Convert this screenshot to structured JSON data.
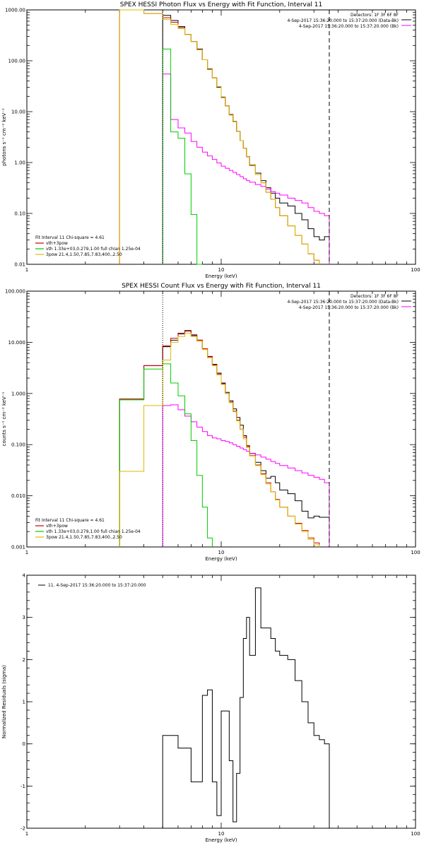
{
  "chart_data": [
    {
      "type": "line",
      "title": "SPEX HESSI Photon Flux vs Energy with Fit Function, Interval 11",
      "xlabel": "Energy (keV)",
      "ylabel": "photons s⁻¹ cm⁻² keV⁻¹",
      "xscale": "log",
      "yscale": "log",
      "xlim": [
        1,
        100
      ],
      "ylim": [
        0.01,
        1000
      ],
      "x_ticks": [
        {
          "v": 1,
          "label": "1"
        },
        {
          "v": 10,
          "label": "10"
        },
        {
          "v": 100,
          "label": "100"
        }
      ],
      "y_ticks": [
        {
          "v": 0.01,
          "label": "0.01"
        },
        {
          "v": 0.1,
          "label": "0.10"
        },
        {
          "v": 1,
          "label": "1.00"
        },
        {
          "v": 10,
          "label": "10.00"
        },
        {
          "v": 100,
          "label": "100.00"
        },
        {
          "v": 1000,
          "label": "1000.00"
        }
      ],
      "vlines": [
        {
          "x": 5.0,
          "style": "dotted",
          "color": "#000000"
        },
        {
          "x": 36.0,
          "style": "dashed",
          "color": "#000000"
        }
      ],
      "info_lines": [
        "Detectors: 1F 3F 6F 8F",
        "4-Sep-2017 15:36:20.000 to 15:37:20.000 (Data-Bk)",
        "4-Sep-2017 15:36:20.000 to 15:37:20.000 (Bk)"
      ],
      "info_colors": [
        "#000000",
        "#ff00ff"
      ],
      "fit_text": "Fit Interval 11   Chi-square = 4.61",
      "legend": [
        {
          "label": "vth+3pow",
          "color": "#cc0000"
        },
        {
          "label": "vth 1.33e+03,0.279,1.00  full chian 1.25e-04",
          "color": "#00cc00"
        },
        {
          "label": "3pow 21.4,1.50,7.85,7.83,400.,2.50",
          "color": "#ddbb00"
        }
      ],
      "edges": [
        3,
        4,
        5,
        5.5,
        6,
        6.5,
        7,
        7.5,
        8,
        8.5,
        9,
        9.5,
        10,
        10.5,
        11,
        11.5,
        12,
        12.5,
        13,
        13.5,
        14,
        15,
        16,
        17,
        18,
        19,
        20,
        22,
        24,
        26,
        28,
        30,
        32,
        34,
        36
      ],
      "series": [
        {
          "name": "Data-Bk",
          "color": "#000000",
          "values": [
            null,
            null,
            780,
            620,
            470,
            330,
            240,
            170,
            105,
            68,
            46,
            30,
            19,
            13,
            8.8,
            6.4,
            4.1,
            2.7,
            1.9,
            1.3,
            0.88,
            0.62,
            0.44,
            0.32,
            0.25,
            0.2,
            0.16,
            0.14,
            0.1,
            0.075,
            0.05,
            0.035,
            0.03,
            0.035
          ]
        },
        {
          "name": "Bk",
          "color": "#ff00ff",
          "values": [
            null,
            null,
            55,
            7.0,
            4.8,
            3.8,
            2.6,
            2.0,
            1.6,
            1.35,
            1.15,
            0.98,
            0.85,
            0.77,
            0.7,
            0.64,
            0.58,
            0.53,
            0.48,
            0.44,
            0.41,
            0.37,
            0.34,
            0.3,
            0.27,
            0.25,
            0.23,
            0.2,
            0.18,
            0.16,
            0.13,
            0.11,
            0.1,
            0.09
          ]
        },
        {
          "name": "vth+3pow",
          "color": "#cc0000",
          "values": [
            1000,
            850,
            700,
            570,
            450,
            330,
            240,
            165,
            105,
            70,
            46,
            31,
            19.5,
            13,
            8.6,
            6.3,
            4.1,
            2.7,
            1.9,
            1.3,
            0.9,
            0.58,
            0.4,
            0.26,
            0.19,
            0.13,
            0.09,
            0.057,
            0.037,
            0.025,
            0.016,
            0.012,
            null,
            null
          ]
        },
        {
          "name": "vth",
          "color": "#00cc00",
          "values": [
            null,
            null,
            170,
            4.0,
            3.0,
            0.6,
            0.095,
            0.005,
            null,
            null,
            null,
            null,
            null,
            null,
            null,
            null,
            null,
            null,
            null,
            null,
            null,
            null,
            null,
            null,
            null,
            null,
            null,
            null,
            null,
            null,
            null,
            null,
            null,
            null
          ]
        },
        {
          "name": "3pow",
          "color": "#ddbb00",
          "values": [
            1000,
            850,
            650,
            520,
            430,
            330,
            240,
            165,
            105,
            70,
            46,
            31,
            19.5,
            13,
            8.6,
            6.3,
            4.1,
            2.7,
            1.9,
            1.3,
            0.9,
            0.58,
            0.4,
            0.26,
            0.19,
            0.13,
            0.09,
            0.057,
            0.037,
            0.025,
            0.016,
            0.012,
            null,
            null
          ]
        }
      ]
    },
    {
      "type": "line",
      "title": "SPEX HESSI Count Flux vs Energy with Fit Function, Interval 11",
      "xlabel": "Energy (keV)",
      "ylabel": "counts s⁻¹ cm⁻² keV⁻¹",
      "xscale": "log",
      "yscale": "log",
      "xlim": [
        1,
        100
      ],
      "ylim": [
        0.001,
        100
      ],
      "x_ticks": [
        {
          "v": 1,
          "label": "1"
        },
        {
          "v": 10,
          "label": "10"
        },
        {
          "v": 100,
          "label": "100"
        }
      ],
      "y_ticks": [
        {
          "v": 0.001,
          "label": "0.001"
        },
        {
          "v": 0.01,
          "label": "0.010"
        },
        {
          "v": 0.1,
          "label": "0.100"
        },
        {
          "v": 1,
          "label": "1.000"
        },
        {
          "v": 10,
          "label": "10.000"
        },
        {
          "v": 100,
          "label": "100.000"
        }
      ],
      "vlines": [
        {
          "x": 5.0,
          "style": "dotted",
          "color": "#000000"
        },
        {
          "x": 36.0,
          "style": "dashed",
          "color": "#000000"
        }
      ],
      "info_lines": [
        "Detectors: 1F 3F 6F 8F",
        "4-Sep-2017 15:36:20.000 to 15:37:20.000 (Data-Bk)",
        "4-Sep-2017 15:36:20.000 to 15:37:20.000 (Bk)"
      ],
      "info_colors": [
        "#000000",
        "#ff00ff"
      ],
      "fit_text": "Fit Interval 11   Chi-square = 4.61",
      "legend": [
        {
          "label": "vth+3pow",
          "color": "#cc0000"
        },
        {
          "label": "vth 1.33e+03,0.279,1.00  full chian 1.25e-04",
          "color": "#00cc00"
        },
        {
          "label": "3pow 21.4,1.50,7.85,7.83,400.,2.50",
          "color": "#ddbb00"
        }
      ],
      "edges": [
        3,
        4,
        5,
        5.5,
        6,
        6.5,
        7,
        7.5,
        8,
        8.5,
        9,
        9.5,
        10,
        10.5,
        11,
        11.5,
        12,
        12.5,
        13,
        13.5,
        14,
        15,
        16,
        17,
        18,
        19,
        20,
        22,
        24,
        26,
        28,
        30,
        32,
        34,
        36
      ],
      "series": [
        {
          "name": "Data-Bk",
          "color": "#000000",
          "values": [
            0.78,
            3.5,
            8.2,
            11,
            15,
            17,
            14,
            11,
            7.5,
            5.3,
            3.7,
            2.5,
            1.6,
            1.05,
            0.72,
            0.5,
            0.34,
            0.24,
            0.15,
            0.095,
            0.067,
            0.045,
            0.031,
            0.022,
            0.024,
            0.018,
            0.013,
            0.011,
            0.008,
            0.005,
            0.0037,
            0.004,
            0.0038,
            0.0038
          ]
        },
        {
          "name": "Bk",
          "color": "#ff00ff",
          "values": [
            null,
            null,
            0.58,
            0.6,
            0.48,
            0.36,
            0.28,
            0.22,
            0.18,
            0.15,
            0.135,
            0.13,
            0.12,
            0.115,
            0.108,
            0.1,
            0.093,
            0.086,
            0.08,
            0.074,
            0.068,
            0.063,
            0.057,
            0.052,
            0.047,
            0.043,
            0.039,
            0.035,
            0.031,
            0.028,
            0.025,
            0.023,
            0.021,
            0.018
          ]
        },
        {
          "name": "vth+3pow",
          "color": "#cc0000",
          "values": [
            0.78,
            3.5,
            8.5,
            12,
            14.5,
            16.5,
            13.5,
            11,
            7.5,
            5.2,
            3.6,
            2.4,
            1.55,
            1.0,
            0.68,
            0.45,
            0.3,
            0.2,
            0.14,
            0.092,
            0.061,
            0.04,
            0.027,
            0.018,
            0.012,
            0.0085,
            0.006,
            0.004,
            0.0029,
            0.0021,
            0.0015,
            0.0012,
            null,
            null
          ]
        },
        {
          "name": "vth",
          "color": "#00cc00",
          "values": [
            0.75,
            3.0,
            3.8,
            1.6,
            0.9,
            0.4,
            0.12,
            0.025,
            0.006,
            0.0015,
            null,
            null,
            null,
            null,
            null,
            null,
            null,
            null,
            null,
            null,
            null,
            null,
            null,
            null,
            null,
            null,
            null,
            null,
            null,
            null,
            null,
            null,
            null,
            null
          ]
        },
        {
          "name": "3pow",
          "color": "#ddbb00",
          "values": [
            0.03,
            0.58,
            4.5,
            10,
            13,
            15,
            13,
            10.5,
            7.2,
            5.0,
            3.5,
            2.3,
            1.5,
            1.0,
            0.66,
            0.44,
            0.29,
            0.2,
            0.13,
            0.088,
            0.06,
            0.039,
            0.026,
            0.017,
            0.012,
            0.0083,
            0.006,
            0.004,
            0.0028,
            0.002,
            0.0014,
            0.0011,
            null,
            null
          ]
        }
      ]
    },
    {
      "type": "line",
      "title": "",
      "xlabel": "Energy (keV)",
      "ylabel": "Normalized Residuals (sigma)",
      "xscale": "log",
      "yscale": "linear",
      "xlim": [
        1,
        100
      ],
      "ylim": [
        -2,
        4
      ],
      "x_ticks": [
        {
          "v": 1,
          "label": "1"
        },
        {
          "v": 10,
          "label": "10"
        },
        {
          "v": 100,
          "label": "100"
        }
      ],
      "y_ticks": [
        {
          "v": -2,
          "label": "-2"
        },
        {
          "v": -1,
          "label": "-1"
        },
        {
          "v": 0,
          "label": "0"
        },
        {
          "v": 1,
          "label": "1"
        },
        {
          "v": 2,
          "label": "2"
        },
        {
          "v": 3,
          "label": "3"
        },
        {
          "v": 4,
          "label": "4"
        }
      ],
      "vlines": [],
      "info_lines": [],
      "info_colors": [],
      "fit_text": "",
      "legend_top": {
        "label": "11.  4-Sep-2017 15:36:20.000 to 15:37:20.000",
        "color": "#000000"
      },
      "edges": [
        5,
        5.5,
        6,
        6.5,
        7,
        7.5,
        8,
        8.5,
        9,
        9.5,
        10,
        10.5,
        11,
        11.5,
        12,
        12.5,
        13,
        13.5,
        14,
        15,
        16,
        17,
        18,
        19,
        20,
        22,
        24,
        26,
        28,
        30,
        32,
        34,
        36
      ],
      "series": [
        {
          "name": "residuals",
          "color": "#000000",
          "values": [
            0.2,
            0.2,
            -0.1,
            -0.1,
            -0.9,
            -0.9,
            1.15,
            1.28,
            -0.9,
            -1.7,
            0.78,
            0.78,
            -0.4,
            -1.85,
            -0.7,
            1.1,
            2.5,
            3.0,
            2.1,
            3.7,
            2.75,
            2.75,
            2.5,
            2.2,
            2.1,
            2.0,
            1.5,
            1.0,
            0.5,
            0.2,
            0.1,
            0.0
          ]
        }
      ]
    }
  ]
}
